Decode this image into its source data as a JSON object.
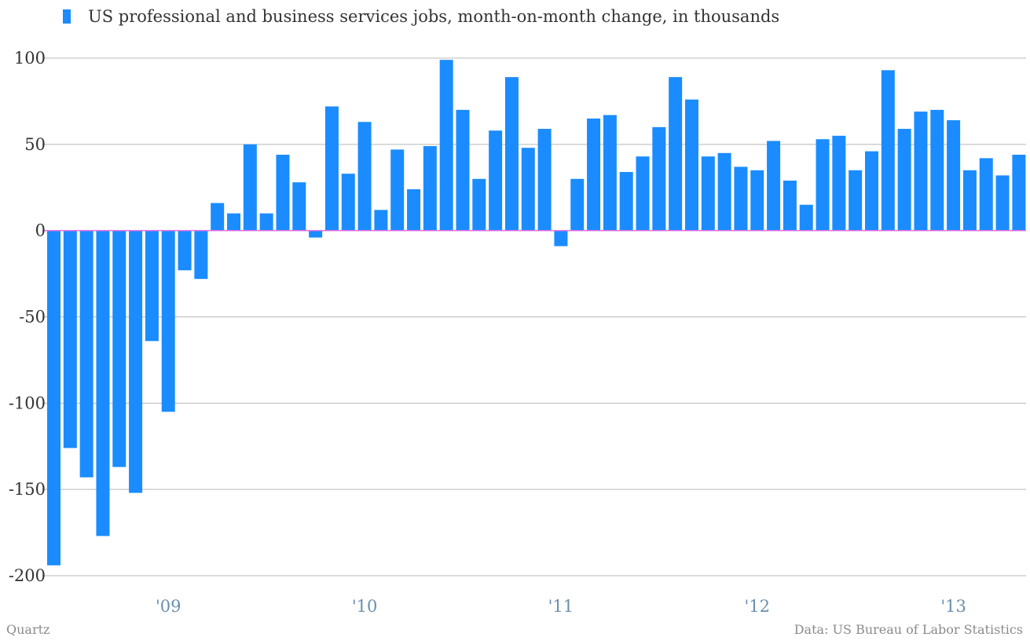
{
  "legend": {
    "label": "US professional and business services jobs, month-on-month change, in thousands"
  },
  "footer": {
    "source_label": "Quartz",
    "credit": "Data: US Bureau of Labor Statistics"
  },
  "colors": {
    "bar": "#1a8cff",
    "zero_line": "#e06ce6",
    "gridline": "#b8b8b8",
    "y_tick_text": "#333333",
    "x_tick_text": "#6a8fb0",
    "footer_text": "#8a8a8a"
  },
  "chart_data": {
    "type": "bar",
    "title": "",
    "xlabel": "",
    "ylabel": "",
    "ylim": [
      -200,
      100
    ],
    "yticks": [
      100,
      50,
      0,
      -50,
      -100,
      -150,
      -200
    ],
    "ytick_labels": [
      "100",
      "50",
      "0",
      "-50",
      "-100",
      "-150",
      "-200"
    ],
    "x_start": "2008-06",
    "x_tick_labels": [
      {
        "label": "'09",
        "month": "2009-01"
      },
      {
        "label": "'10",
        "month": "2010-01"
      },
      {
        "label": "'11",
        "month": "2011-01"
      },
      {
        "label": "'12",
        "month": "2012-01"
      },
      {
        "label": "'13",
        "month": "2013-01"
      }
    ],
    "grid": true,
    "legend_position": "top-left",
    "series": [
      {
        "name": "US professional and business services jobs, month-on-month change, in thousands",
        "values": [
          -194,
          -126,
          -143,
          -177,
          -137,
          -152,
          -64,
          -105,
          -23,
          -28,
          16,
          10,
          50,
          10,
          44,
          28,
          -4,
          72,
          33,
          63,
          12,
          47,
          24,
          49,
          99,
          70,
          30,
          58,
          89,
          48,
          59,
          -9,
          30,
          65,
          67,
          34,
          43,
          60,
          89,
          76,
          43,
          45,
          37,
          35,
          52,
          29,
          15,
          53,
          55,
          35,
          46,
          93,
          59,
          69,
          70,
          64,
          35,
          42,
          32,
          44
        ]
      }
    ]
  }
}
